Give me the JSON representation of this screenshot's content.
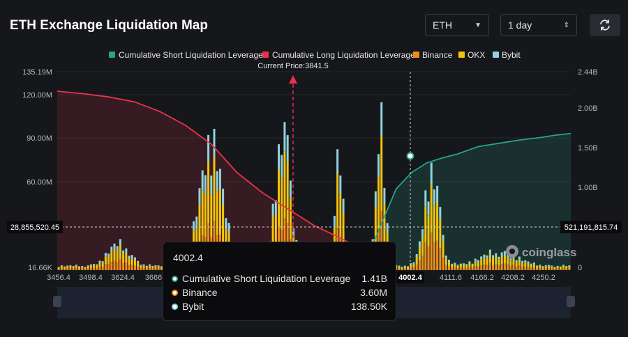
{
  "header": {
    "title": "ETH Exchange Liquidation Map",
    "symbol_value": "ETH",
    "range_value": "1 day",
    "refresh_icon": "refresh-icon"
  },
  "legend": [
    {
      "label": "Cumulative Short Liquidation Leverage",
      "color": "#26a48b"
    },
    {
      "label": "Cumulative Long Liquidation Leverage",
      "color": "#e8344a"
    },
    {
      "label": "Binance",
      "color": "#f08c1a"
    },
    {
      "label": "OKX",
      "color": "#f2c40c"
    },
    {
      "label": "Bybit",
      "color": "#8fd3e0"
    }
  ],
  "chart_data": {
    "type": "bar",
    "current_price_label": "Current Price:3841.5",
    "current_price": 3841.5,
    "x_ticks": [
      "3456.4",
      "3498.4",
      "3624.4",
      "3666",
      "4002.4",
      "4111.6",
      "4166.2",
      "4208.2",
      "4250.2"
    ],
    "y_left_ticks": [
      "135.19M",
      "120.00M",
      "90.00M",
      "60.00M",
      "16.66K"
    ],
    "y_left_range": [
      0,
      135190000
    ],
    "y_right_ticks": [
      "2.44B",
      "2.00B",
      "1.50B",
      "1.00B",
      "0"
    ],
    "y_right_range": [
      0,
      2440000000
    ],
    "crosshair_left_label": "28,855,520.45",
    "crosshair_right_label": "521,191,815.74",
    "crosshair_x_label": "4002.4",
    "watermark": "coinglass",
    "long_curve": [
      {
        "x": 0.0,
        "y": 2.2
      },
      {
        "x": 0.05,
        "y": 2.17
      },
      {
        "x": 0.1,
        "y": 2.13
      },
      {
        "x": 0.15,
        "y": 2.07
      },
      {
        "x": 0.2,
        "y": 1.95
      },
      {
        "x": 0.25,
        "y": 1.78
      },
      {
        "x": 0.3,
        "y": 1.55
      },
      {
        "x": 0.35,
        "y": 1.2
      },
      {
        "x": 0.4,
        "y": 0.95
      },
      {
        "x": 0.45,
        "y": 0.75
      },
      {
        "x": 0.5,
        "y": 0.55
      },
      {
        "x": 0.55,
        "y": 0.4
      },
      {
        "x": 0.58,
        "y": 0.3
      },
      {
        "x": 0.61,
        "y": 0.28
      }
    ],
    "short_curve": [
      {
        "x": 0.61,
        "y": 0.28
      },
      {
        "x": 0.62,
        "y": 0.4
      },
      {
        "x": 0.64,
        "y": 0.7
      },
      {
        "x": 0.66,
        "y": 1.0
      },
      {
        "x": 0.69,
        "y": 1.2
      },
      {
        "x": 0.72,
        "y": 1.32
      },
      {
        "x": 0.75,
        "y": 1.38
      },
      {
        "x": 0.78,
        "y": 1.43
      },
      {
        "x": 0.82,
        "y": 1.52
      },
      {
        "x": 0.86,
        "y": 1.56
      },
      {
        "x": 0.9,
        "y": 1.6
      },
      {
        "x": 0.94,
        "y": 1.63
      },
      {
        "x": 0.97,
        "y": 1.66
      },
      {
        "x": 1.0,
        "y": 1.68
      }
    ]
  },
  "tooltip": {
    "title": "4002.4",
    "rows": [
      {
        "label": "Cumulative Short Liquidation Leverage",
        "value": "1.41B",
        "color": "#26a48b"
      },
      {
        "label": "Binance",
        "value": "3.60M",
        "color": "#f08c1a"
      },
      {
        "label": "Bybit",
        "value": "138.50K",
        "color": "#8fd3e0"
      }
    ]
  }
}
